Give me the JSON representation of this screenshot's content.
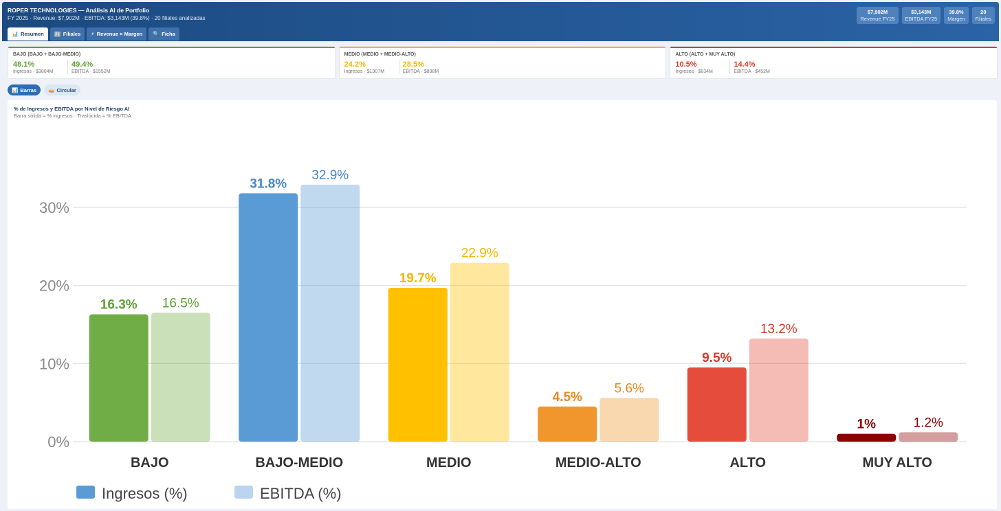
{
  "header": {
    "title": "ROPER TECHNOLOGIES — Análisis AI de Portfolio",
    "subtitle": "FY 2025 · Revenue: $7,902M · EBITDA: $3,143M (39.8%) · 20 filiales analizadas",
    "stats": [
      {
        "value": "$7,902M",
        "label": "Revenue FY25"
      },
      {
        "value": "$3,143M",
        "label": "EBITDA FY25"
      },
      {
        "value": "39.8%",
        "label": "Margen"
      },
      {
        "value": "20",
        "label": "Filiales"
      }
    ]
  },
  "tabs": [
    {
      "icon": "📊",
      "label": "Resumen"
    },
    {
      "icon": "🏢",
      "label": "Filiales"
    },
    {
      "icon": "⚡",
      "label": "Revenue × Margen"
    },
    {
      "icon": "🔍",
      "label": "Ficha"
    }
  ],
  "cards": [
    {
      "title": "BAJO (BAJO + BAJO-MEDIO)",
      "color": "#5ea035",
      "rev_pct": "48.1%",
      "rev_label": "Ingresos · $3804M",
      "ebitda_pct": "49.4%",
      "ebitda_label": "EBITDA · $1552M"
    },
    {
      "title": "MEDIO (MEDIO + MEDIO-ALTO)",
      "color": "#f2b705",
      "rev_pct": "24.2%",
      "rev_label": "Ingresos · $1907M",
      "ebitda_pct": "28.5%",
      "ebitda_label": "EBITDA · $898M"
    },
    {
      "title": "ALTO (ALTO + MUY ALTO)",
      "color": "#d93a2b",
      "rev_pct": "10.5%",
      "rev_label": "Ingresos · $834M",
      "ebitda_pct": "14.4%",
      "ebitda_label": "EBITDA · $452M"
    }
  ],
  "toggles": [
    {
      "icon": "📊",
      "label": "Barras"
    },
    {
      "icon": "🥧",
      "label": "Circular"
    }
  ],
  "panel": {
    "title": "% de Ingresos y EBITDA por Nivel de Riesgo AI",
    "subtitle": "Barra sólida = % ingresos · Traslúcida = % EBITDA"
  },
  "chart_data": {
    "type": "bar",
    "categories": [
      "BAJO",
      "BAJO-MEDIO",
      "MEDIO",
      "MEDIO-ALTO",
      "ALTO",
      "MUY ALTO"
    ],
    "series": [
      {
        "name": "Ingresos (%)",
        "values": [
          16.3,
          31.8,
          19.7,
          4.5,
          9.5,
          1
        ],
        "labels": [
          "16.3%",
          "31.8%",
          "19.7%",
          "4.5%",
          "9.5%",
          "1%"
        ]
      },
      {
        "name": "EBITDA (%)",
        "values": [
          16.5,
          32.9,
          22.9,
          5.6,
          13.2,
          1.2
        ],
        "labels": [
          "16.5%",
          "32.9%",
          "22.9%",
          "5.6%",
          "13.2%",
          "1.2%"
        ]
      }
    ],
    "colors": [
      "#70ad47",
      "#5b9bd5",
      "#ffc000",
      "#f0962c",
      "#e64c3c",
      "#8b0000"
    ],
    "label_colors": [
      "#5ea035",
      "#4a87c6",
      "#f2b705",
      "#e8891c",
      "#d93a2b",
      "#8b0000"
    ],
    "legend_colors": [
      "#5b9bd5",
      "#bcd5ee"
    ],
    "yticks": [
      "0%",
      "10%",
      "20%",
      "30%"
    ],
    "ylim": [
      0,
      34
    ],
    "legend_position": "bottom-left"
  }
}
